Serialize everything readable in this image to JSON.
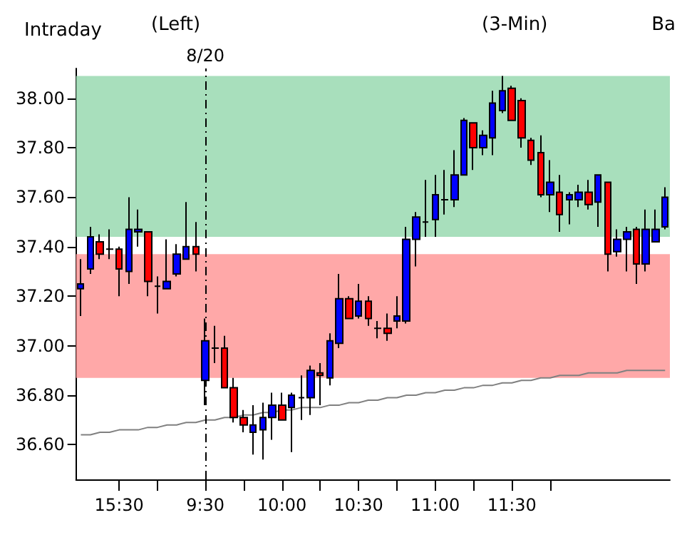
{
  "chart_data": {
    "type": "candlestick",
    "title": "Intraday",
    "annotations": [
      "(Left)",
      "(3-Min)",
      "Ba"
    ],
    "categories": [
      null,
      null,
      null,
      null,
      "15:30",
      null,
      null,
      null,
      null,
      null,
      null,
      null,
      null,
      "9:30",
      null,
      null,
      null,
      null,
      null,
      null,
      null,
      "10:00",
      null,
      null,
      null,
      null,
      null,
      null,
      null,
      "10:30",
      null,
      null,
      null,
      null,
      null,
      null,
      null,
      "11:00",
      null,
      null,
      null,
      null,
      null,
      null,
      null,
      "11:30",
      null,
      null,
      null,
      null,
      null,
      null,
      null,
      null,
      null,
      null,
      null,
      null,
      null,
      null,
      null,
      null
    ],
    "ohlc": [
      [
        37.23,
        37.35,
        37.12,
        37.25
      ],
      [
        37.31,
        37.48,
        37.29,
        37.44
      ],
      [
        37.42,
        37.45,
        37.35,
        37.37
      ],
      [
        37.39,
        37.47,
        37.35,
        37.39
      ],
      [
        37.39,
        37.4,
        37.2,
        37.31
      ],
      [
        37.3,
        37.6,
        37.25,
        37.47
      ],
      [
        37.46,
        37.55,
        37.4,
        37.47
      ],
      [
        37.46,
        37.46,
        37.2,
        37.26
      ],
      [
        37.24,
        37.28,
        37.13,
        37.24
      ],
      [
        37.23,
        37.43,
        37.23,
        37.26
      ],
      [
        37.29,
        37.41,
        37.28,
        37.37
      ],
      [
        37.35,
        37.58,
        37.35,
        37.4
      ],
      [
        37.4,
        37.5,
        37.3,
        37.37
      ],
      [
        36.86,
        37.11,
        36.76,
        37.02
      ],
      [
        36.99,
        37.08,
        36.93,
        36.99
      ],
      [
        36.99,
        37.04,
        36.83,
        36.83
      ],
      [
        36.83,
        36.87,
        36.69,
        36.71
      ],
      [
        36.71,
        36.74,
        36.65,
        36.68
      ],
      [
        36.65,
        36.76,
        36.56,
        36.68
      ],
      [
        36.66,
        36.77,
        36.54,
        36.71
      ],
      [
        36.71,
        36.81,
        36.62,
        36.76
      ],
      [
        36.76,
        36.81,
        36.7,
        36.7
      ],
      [
        36.75,
        36.81,
        36.57,
        36.8
      ],
      [
        36.79,
        36.88,
        36.7,
        36.79
      ],
      [
        36.79,
        36.92,
        36.72,
        36.9
      ],
      [
        36.89,
        36.93,
        36.76,
        36.88
      ],
      [
        36.87,
        37.05,
        36.84,
        37.02
      ],
      [
        37.01,
        37.29,
        36.99,
        37.19
      ],
      [
        37.19,
        37.2,
        37.11,
        37.11
      ],
      [
        37.12,
        37.25,
        37.11,
        37.18
      ],
      [
        37.18,
        37.2,
        37.08,
        37.11
      ],
      [
        37.07,
        37.1,
        37.03,
        37.07
      ],
      [
        37.07,
        37.13,
        37.02,
        37.05
      ],
      [
        37.1,
        37.2,
        37.07,
        37.12
      ],
      [
        37.1,
        37.48,
        37.09,
        37.43
      ],
      [
        37.43,
        37.54,
        37.32,
        37.52
      ],
      [
        37.5,
        37.67,
        37.44,
        37.5
      ],
      [
        37.51,
        37.69,
        37.44,
        37.61
      ],
      [
        37.59,
        37.71,
        37.53,
        37.59
      ],
      [
        37.59,
        37.79,
        37.56,
        37.69
      ],
      [
        37.69,
        37.92,
        37.69,
        37.91
      ],
      [
        37.9,
        37.9,
        37.71,
        37.8
      ],
      [
        37.8,
        37.87,
        37.77,
        37.85
      ],
      [
        37.84,
        38.03,
        37.77,
        37.98
      ],
      [
        37.95,
        38.09,
        37.94,
        38.03
      ],
      [
        38.04,
        38.05,
        37.91,
        37.91
      ],
      [
        37.99,
        38.0,
        37.8,
        37.84
      ],
      [
        37.83,
        37.84,
        37.73,
        37.75
      ],
      [
        37.78,
        37.85,
        37.6,
        37.61
      ],
      [
        37.61,
        37.75,
        37.54,
        37.66
      ],
      [
        37.62,
        37.69,
        37.46,
        37.53
      ],
      [
        37.59,
        37.62,
        37.49,
        37.61
      ],
      [
        37.59,
        37.65,
        37.56,
        37.62
      ],
      [
        37.62,
        37.67,
        37.55,
        37.57
      ],
      [
        37.58,
        37.69,
        37.48,
        37.69
      ],
      [
        37.66,
        37.66,
        37.3,
        37.37
      ],
      [
        37.38,
        37.47,
        37.36,
        37.43
      ],
      [
        37.43,
        37.48,
        37.3,
        37.46
      ],
      [
        37.47,
        37.48,
        37.25,
        37.33
      ],
      [
        37.33,
        37.55,
        37.3,
        37.47
      ],
      [
        37.42,
        37.55,
        37.42,
        37.47
      ],
      [
        37.48,
        37.64,
        37.47,
        37.6
      ]
    ],
    "colors": [
      "#0000ff",
      "#0000ff",
      "#ff0000",
      "#000000",
      "#ff0000",
      "#0000ff",
      "#0000ff",
      "#ff0000",
      "#000000",
      "#0000ff",
      "#0000ff",
      "#0000ff",
      "#ff0000",
      "#0000ff",
      "#000000",
      "#ff0000",
      "#ff0000",
      "#ff0000",
      "#0000ff",
      "#0000ff",
      "#0000ff",
      "#ff0000",
      "#0000ff",
      "#000000",
      "#0000ff",
      "#ff0000",
      "#0000ff",
      "#0000ff",
      "#ff0000",
      "#0000ff",
      "#ff0000",
      "#000000",
      "#ff0000",
      "#0000ff",
      "#0000ff",
      "#0000ff",
      "#000000",
      "#0000ff",
      "#000000",
      "#0000ff",
      "#0000ff",
      "#ff0000",
      "#0000ff",
      "#0000ff",
      "#0000ff",
      "#ff0000",
      "#ff0000",
      "#ff0000",
      "#ff0000",
      "#0000ff",
      "#ff0000",
      "#0000ff",
      "#0000ff",
      "#ff0000",
      "#0000ff",
      "#ff0000",
      "#0000ff",
      "#0000ff",
      "#ff0000",
      "#0000ff",
      "#0000ff",
      "#0000ff"
    ],
    "series": [
      {
        "type": "line",
        "color": "#808080",
        "values": [
          36.64,
          36.64,
          36.65,
          36.65,
          36.66,
          36.66,
          36.66,
          36.67,
          36.67,
          36.68,
          36.68,
          36.69,
          36.69,
          36.7,
          36.7,
          36.71,
          36.71,
          36.72,
          36.72,
          36.73,
          36.73,
          36.74,
          36.74,
          36.75,
          36.75,
          36.75,
          36.76,
          36.76,
          36.77,
          36.77,
          36.78,
          36.78,
          36.79,
          36.79,
          36.8,
          36.8,
          36.81,
          36.81,
          36.82,
          36.82,
          36.83,
          36.83,
          36.84,
          36.84,
          36.85,
          36.85,
          36.86,
          36.86,
          36.87,
          36.87,
          36.88,
          36.88,
          36.88,
          36.89,
          36.89,
          36.89,
          36.89,
          36.9,
          36.9,
          36.9,
          36.9,
          36.9
        ]
      }
    ],
    "ylim": [
      36.46,
      38.12
    ],
    "yticks": [
      {
        "value": 36.6,
        "label": "36.60"
      },
      {
        "value": 36.8,
        "label": "36.80"
      },
      {
        "value": 37.0,
        "label": "37.00"
      },
      {
        "value": 37.2,
        "label": "37.20"
      },
      {
        "value": 37.4,
        "label": "37.40"
      },
      {
        "value": 37.6,
        "label": "37.60"
      },
      {
        "value": 37.8,
        "label": "37.80"
      },
      {
        "value": 38.0,
        "label": "38.00"
      }
    ],
    "ref_lines": [
      {
        "axis": "x",
        "value": "9:30",
        "label": "8/20",
        "color": "#000000",
        "line_style": "dashed"
      }
    ],
    "bands": [
      {
        "axis": "y",
        "from": 36.87,
        "to": 37.37,
        "color": "#ff9999"
      },
      {
        "axis": "y",
        "from": 37.44,
        "to": 38.09,
        "color": "#99d9b0"
      }
    ],
    "grid": false
  }
}
